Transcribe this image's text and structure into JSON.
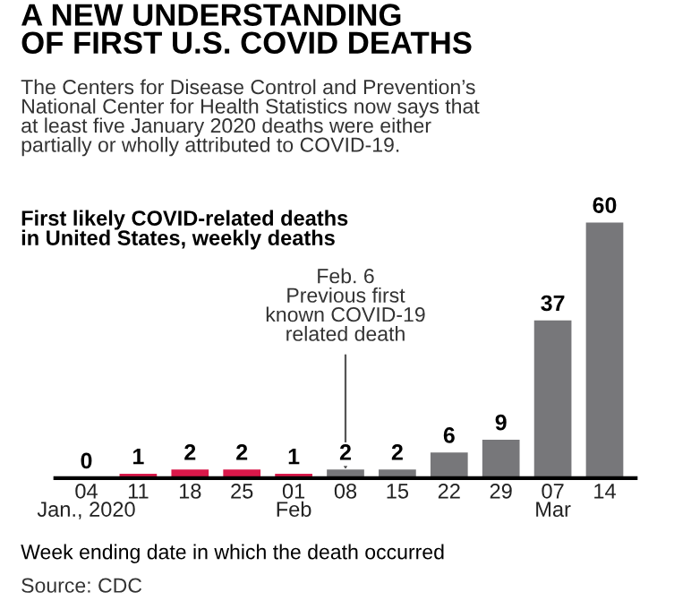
{
  "chart_data": {
    "type": "bar",
    "title": "A NEW UNDERSTANDING\nOF FIRST U.S. COVID DEATHS",
    "subtitle": "The Centers for Disease Control and Prevention’s\nNational Center for Health Statistics now says that\nat least five January 2020 deaths were either\npartially or wholly attributed to COVID-19.",
    "categories": [
      "04\nJan., 2020",
      "11",
      "18",
      "25",
      "01\nFeb",
      "08",
      "15",
      "22",
      "29",
      "07\nMar",
      "14"
    ],
    "values": [
      0,
      1,
      2,
      2,
      1,
      2,
      2,
      6,
      9,
      37,
      60
    ],
    "colors": [
      "#d9184a",
      "#d9184a",
      "#d9184a",
      "#d9184a",
      "#d9184a",
      "#77777a",
      "#77777a",
      "#77777a",
      "#77777a",
      "#77777a",
      "#77777a"
    ],
    "data_labels": true,
    "xlabel": "Week ending date in which the death occurred",
    "annotations": [
      "First likely COVID-related deaths\nin United States, weekly deaths",
      {
        "text": "Feb. 6\nPrevious first\nknown COVID-19\nrelated death",
        "x": "08",
        "y": 2
      },
      "Source: CDC"
    ],
    "grid": false,
    "legend": false
  }
}
